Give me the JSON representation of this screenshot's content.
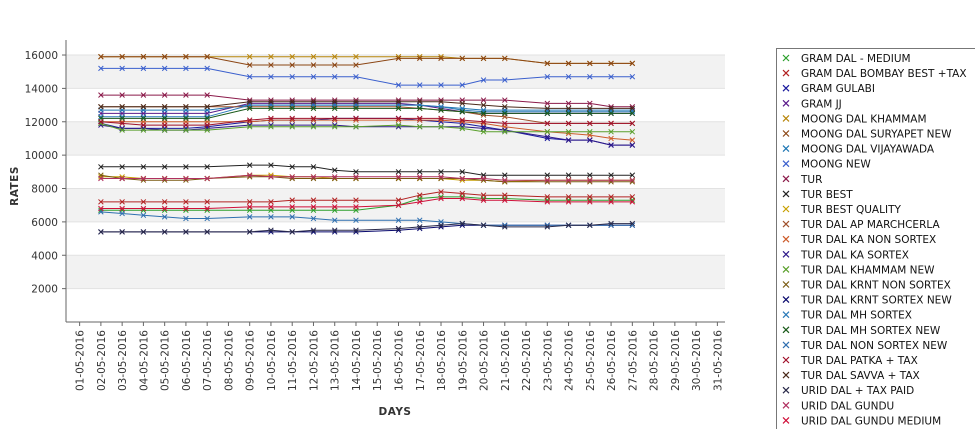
{
  "chart_data": {
    "type": "line",
    "xlabel": "DAYS",
    "ylabel": "RATES",
    "ylim": [
      0,
      16000
    ],
    "y_ticks": [
      2000,
      4000,
      6000,
      8000,
      10000,
      12000,
      14000,
      16000
    ],
    "grid": "alternating horizontal bands",
    "legend_position": "right",
    "categories": [
      "01-05-2016",
      "02-05-2016",
      "03-05-2016",
      "04-05-2016",
      "05-05-2016",
      "06-05-2016",
      "07-05-2016",
      "08-05-2016",
      "09-05-2016",
      "10-05-2016",
      "11-05-2016",
      "12-05-2016",
      "13-05-2016",
      "14-05-2016",
      "15-05-2016",
      "16-05-2016",
      "17-05-2016",
      "18-05-2016",
      "19-05-2016",
      "20-05-2016",
      "21-05-2016",
      "22-05-2016",
      "23-05-2016",
      "24-05-2016",
      "25-05-2016",
      "26-05-2016",
      "27-05-2016",
      "28-05-2016",
      "29-05-2016",
      "30-05-2016",
      "31-05-2016"
    ],
    "series": [
      {
        "name": "GRAM DAL - MEDIUM",
        "color": "#2ca02c",
        "values": [
          null,
          6700,
          6700,
          6700,
          6700,
          6700,
          6700,
          null,
          6700,
          6700,
          6700,
          6700,
          6700,
          6700,
          null,
          7000,
          7400,
          7500,
          7500,
          7400,
          7400,
          null,
          7300,
          7300,
          7300,
          7300,
          7300,
          null,
          null,
          null,
          null
        ]
      },
      {
        "name": "GRAM DAL BOMBAY BEST +TAX",
        "color": "#b22222",
        "values": [
          null,
          7200,
          7200,
          7200,
          7200,
          7200,
          7200,
          null,
          7200,
          7200,
          7300,
          7300,
          7300,
          7300,
          null,
          7300,
          7600,
          7800,
          7700,
          7600,
          7600,
          null,
          7500,
          7500,
          7500,
          7500,
          7500,
          null,
          null,
          null,
          null
        ]
      },
      {
        "name": "GRAM GULABI",
        "color": "#1a1a9e",
        "values": [
          null,
          11900,
          11600,
          11600,
          11600,
          11600,
          11700,
          null,
          12000,
          12100,
          12100,
          12100,
          12200,
          12200,
          null,
          12200,
          12100,
          12000,
          11900,
          11700,
          11500,
          null,
          11000,
          10900,
          10900,
          10600,
          10600,
          null,
          null,
          null,
          null
        ]
      },
      {
        "name": "GRAM JJ",
        "color": "#5a1a8a",
        "values": [
          null,
          12500,
          12500,
          12500,
          12500,
          12500,
          12500,
          null,
          13100,
          13100,
          13100,
          13100,
          13100,
          13100,
          null,
          13100,
          13000,
          12800,
          12600,
          12500,
          12500,
          null,
          12500,
          12500,
          12500,
          12500,
          12500,
          null,
          null,
          null,
          null
        ]
      },
      {
        "name": "MOONG DAL KHAMMAM",
        "color": "#b8860b",
        "values": [
          null,
          15900,
          15900,
          15900,
          15900,
          15900,
          15900,
          null,
          15900,
          15900,
          15900,
          15900,
          15900,
          15900,
          null,
          15900,
          15900,
          15900,
          15800,
          15800,
          15800,
          null,
          15500,
          15500,
          15500,
          15500,
          15500,
          null,
          null,
          null,
          null
        ]
      },
      {
        "name": "MOONG DAL SURYAPET NEW",
        "color": "#8b4513",
        "values": [
          null,
          15900,
          15900,
          15900,
          15900,
          15900,
          15900,
          null,
          15400,
          15400,
          15400,
          15400,
          15400,
          15400,
          null,
          15800,
          15800,
          15800,
          15800,
          15800,
          15800,
          null,
          15500,
          15500,
          15500,
          15500,
          15500,
          null,
          null,
          null,
          null
        ]
      },
      {
        "name": "MOONG DAL VIJAYAWADA",
        "color": "#1f77b4",
        "values": [
          null,
          12700,
          12700,
          12700,
          12700,
          12700,
          12700,
          null,
          13000,
          13000,
          13000,
          13000,
          13000,
          13000,
          null,
          13000,
          13000,
          12900,
          12800,
          12700,
          12700,
          null,
          12700,
          12700,
          12700,
          12700,
          12700,
          null,
          null,
          null,
          null
        ]
      },
      {
        "name": "MOONG NEW",
        "color": "#3a5fcd",
        "values": [
          null,
          15200,
          15200,
          15200,
          15200,
          15200,
          15200,
          null,
          14700,
          14700,
          14700,
          14700,
          14700,
          14700,
          null,
          14200,
          14200,
          14200,
          14200,
          14500,
          14500,
          null,
          14700,
          14700,
          14700,
          14700,
          14700,
          null,
          null,
          null,
          null
        ]
      },
      {
        "name": "TUR",
        "color": "#8b1a4a",
        "values": [
          null,
          13600,
          13600,
          13600,
          13600,
          13600,
          13600,
          null,
          13300,
          13300,
          13300,
          13300,
          13300,
          13300,
          null,
          13300,
          13300,
          13300,
          13300,
          13300,
          13300,
          null,
          13100,
          13100,
          13100,
          12900,
          12900,
          null,
          null,
          null,
          null
        ]
      },
      {
        "name": "TUR BEST",
        "color": "#222222",
        "values": [
          null,
          9300,
          9300,
          9300,
          9300,
          9300,
          9300,
          null,
          9400,
          9400,
          9300,
          9300,
          9100,
          9000,
          null,
          9000,
          9000,
          9000,
          9000,
          8800,
          8800,
          null,
          8800,
          8800,
          8800,
          8800,
          8800,
          null,
          null,
          null,
          null
        ]
      },
      {
        "name": "TUR BEST QUALITY",
        "color": "#c8a000",
        "values": [
          null,
          8700,
          8700,
          8600,
          8600,
          8600,
          8600,
          null,
          8800,
          8800,
          8700,
          8700,
          8600,
          8600,
          null,
          8600,
          8600,
          8600,
          8500,
          8500,
          8400,
          null,
          8500,
          8500,
          8500,
          8500,
          8500,
          null,
          null,
          null,
          null
        ]
      },
      {
        "name": "TUR DAL AP MARCHCERLA",
        "color": "#a0522d",
        "values": [
          null,
          12900,
          12900,
          12900,
          12900,
          12900,
          12900,
          null,
          12900,
          12900,
          12900,
          12900,
          12900,
          12900,
          null,
          12900,
          12800,
          12700,
          12600,
          12400,
          12300,
          null,
          11900,
          11900,
          11900,
          11900,
          11900,
          null,
          null,
          null,
          null
        ]
      },
      {
        "name": "TUR DAL KA NON SORTEX",
        "color": "#cd5c2a",
        "values": [
          null,
          12000,
          12000,
          12000,
          12000,
          12000,
          12000,
          null,
          12000,
          12100,
          12100,
          12100,
          12100,
          12100,
          null,
          12100,
          12100,
          12100,
          12000,
          11900,
          11700,
          null,
          11400,
          11300,
          11200,
          11000,
          10900,
          null,
          null,
          null,
          null
        ]
      },
      {
        "name": "TUR DAL KA SORTEX",
        "color": "#2f1a8a",
        "values": [
          null,
          11800,
          11600,
          11600,
          11500,
          11500,
          11600,
          null,
          11800,
          11800,
          11800,
          11800,
          11800,
          11700,
          null,
          11700,
          11700,
          11700,
          11700,
          11600,
          11500,
          null,
          11100,
          10900,
          10900,
          10600,
          10600,
          null,
          null,
          null,
          null
        ]
      },
      {
        "name": "TUR DAL KHAMMAM NEW",
        "color": "#5aa02c",
        "values": [
          null,
          11900,
          11500,
          11500,
          11500,
          11500,
          11500,
          null,
          11700,
          11700,
          11700,
          11700,
          11700,
          11700,
          null,
          11800,
          11700,
          11700,
          11600,
          11400,
          11400,
          null,
          11400,
          11400,
          11400,
          11400,
          11400,
          null,
          null,
          null,
          null
        ]
      },
      {
        "name": "TUR DAL KRNT NON SORTEX",
        "color": "#7a5a10",
        "values": [
          null,
          8800,
          8600,
          8500,
          8500,
          8500,
          8600,
          null,
          8700,
          8700,
          8600,
          8600,
          8600,
          8600,
          null,
          8600,
          8600,
          8600,
          8600,
          8500,
          8400,
          null,
          8400,
          8400,
          8400,
          8400,
          8400,
          null,
          null,
          null,
          null
        ]
      },
      {
        "name": "TUR DAL KRNT SORTEX NEW",
        "color": "#0a0a6e",
        "values": [
          null,
          5400,
          5400,
          5400,
          5400,
          5400,
          5400,
          null,
          5400,
          5400,
          5400,
          5400,
          5400,
          5400,
          null,
          5500,
          5600,
          5700,
          5800,
          5800,
          5800,
          null,
          5800,
          5800,
          5800,
          5800,
          5800,
          null,
          null,
          null,
          null
        ]
      },
      {
        "name": "TUR DAL MH SORTEX",
        "color": "#2a7ab8",
        "values": [
          null,
          12300,
          12300,
          12300,
          12300,
          12300,
          12300,
          null,
          13000,
          13000,
          13000,
          13000,
          13000,
          13000,
          null,
          13000,
          13000,
          12900,
          12700,
          12600,
          12600,
          null,
          12600,
          12600,
          12600,
          12600,
          12600,
          null,
          null,
          null,
          null
        ]
      },
      {
        "name": "TUR DAL MH SORTEX NEW",
        "color": "#1a5a1a",
        "values": [
          null,
          12200,
          12200,
          12200,
          12200,
          12200,
          12200,
          null,
          12800,
          12800,
          12800,
          12800,
          12800,
          12800,
          null,
          12800,
          12800,
          12700,
          12600,
          12500,
          12500,
          null,
          12500,
          12500,
          12500,
          12500,
          12500,
          null,
          null,
          null,
          null
        ]
      },
      {
        "name": "TUR DAL NON SORTEX NEW",
        "color": "#3070b0",
        "values": [
          null,
          6600,
          6500,
          6400,
          6300,
          6200,
          6200,
          null,
          6300,
          6300,
          6300,
          6200,
          6100,
          6100,
          null,
          6100,
          6100,
          6000,
          5900,
          5800,
          5800,
          null,
          5800,
          5800,
          5800,
          5800,
          5800,
          null,
          null,
          null,
          null
        ]
      },
      {
        "name": "TUR DAL PATKA + TAX",
        "color": "#a0102a",
        "values": [
          null,
          12000,
          11900,
          11800,
          11800,
          11800,
          11800,
          null,
          12100,
          12200,
          12200,
          12200,
          12200,
          12200,
          null,
          12200,
          12200,
          12200,
          12100,
          12000,
          11900,
          null,
          11900,
          11900,
          11900,
          11900,
          11900,
          null,
          null,
          null,
          null
        ]
      },
      {
        "name": "TUR DAL SAVVA + TAX",
        "color": "#4a2a1a",
        "values": [
          null,
          12900,
          12900,
          12900,
          12900,
          12900,
          12900,
          null,
          13200,
          13200,
          13200,
          13200,
          13200,
          13200,
          null,
          13200,
          13200,
          13200,
          13100,
          13000,
          12900,
          null,
          12800,
          12800,
          12800,
          12800,
          12800,
          null,
          null,
          null,
          null
        ]
      },
      {
        "name": "URID DAL + TAX PAID",
        "color": "#2a2a4a",
        "values": [
          null,
          5400,
          5400,
          5400,
          5400,
          5400,
          5400,
          null,
          5400,
          5500,
          5400,
          5500,
          5500,
          5500,
          null,
          5600,
          5700,
          5800,
          5900,
          5800,
          5700,
          null,
          5700,
          5800,
          5800,
          5900,
          5900,
          null,
          null,
          null,
          null
        ]
      },
      {
        "name": "URID DAL GUNDU",
        "color": "#b03060",
        "values": [
          null,
          8600,
          8600,
          8600,
          8600,
          8600,
          8600,
          null,
          8800,
          8700,
          8700,
          8700,
          8700,
          8700,
          null,
          8700,
          8700,
          8700,
          8600,
          8600,
          8500,
          null,
          8500,
          8500,
          8500,
          8500,
          8500,
          null,
          null,
          null,
          null
        ]
      },
      {
        "name": "URID DAL GUNDU MEDIUM",
        "color": "#d0103a",
        "values": [
          null,
          6800,
          6800,
          6800,
          6800,
          6800,
          6800,
          null,
          6900,
          6900,
          6900,
          6900,
          6900,
          6900,
          null,
          7000,
          7200,
          7400,
          7400,
          7300,
          7300,
          null,
          7200,
          7200,
          7200,
          7200,
          7200,
          null,
          null,
          null,
          null
        ]
      }
    ]
  }
}
